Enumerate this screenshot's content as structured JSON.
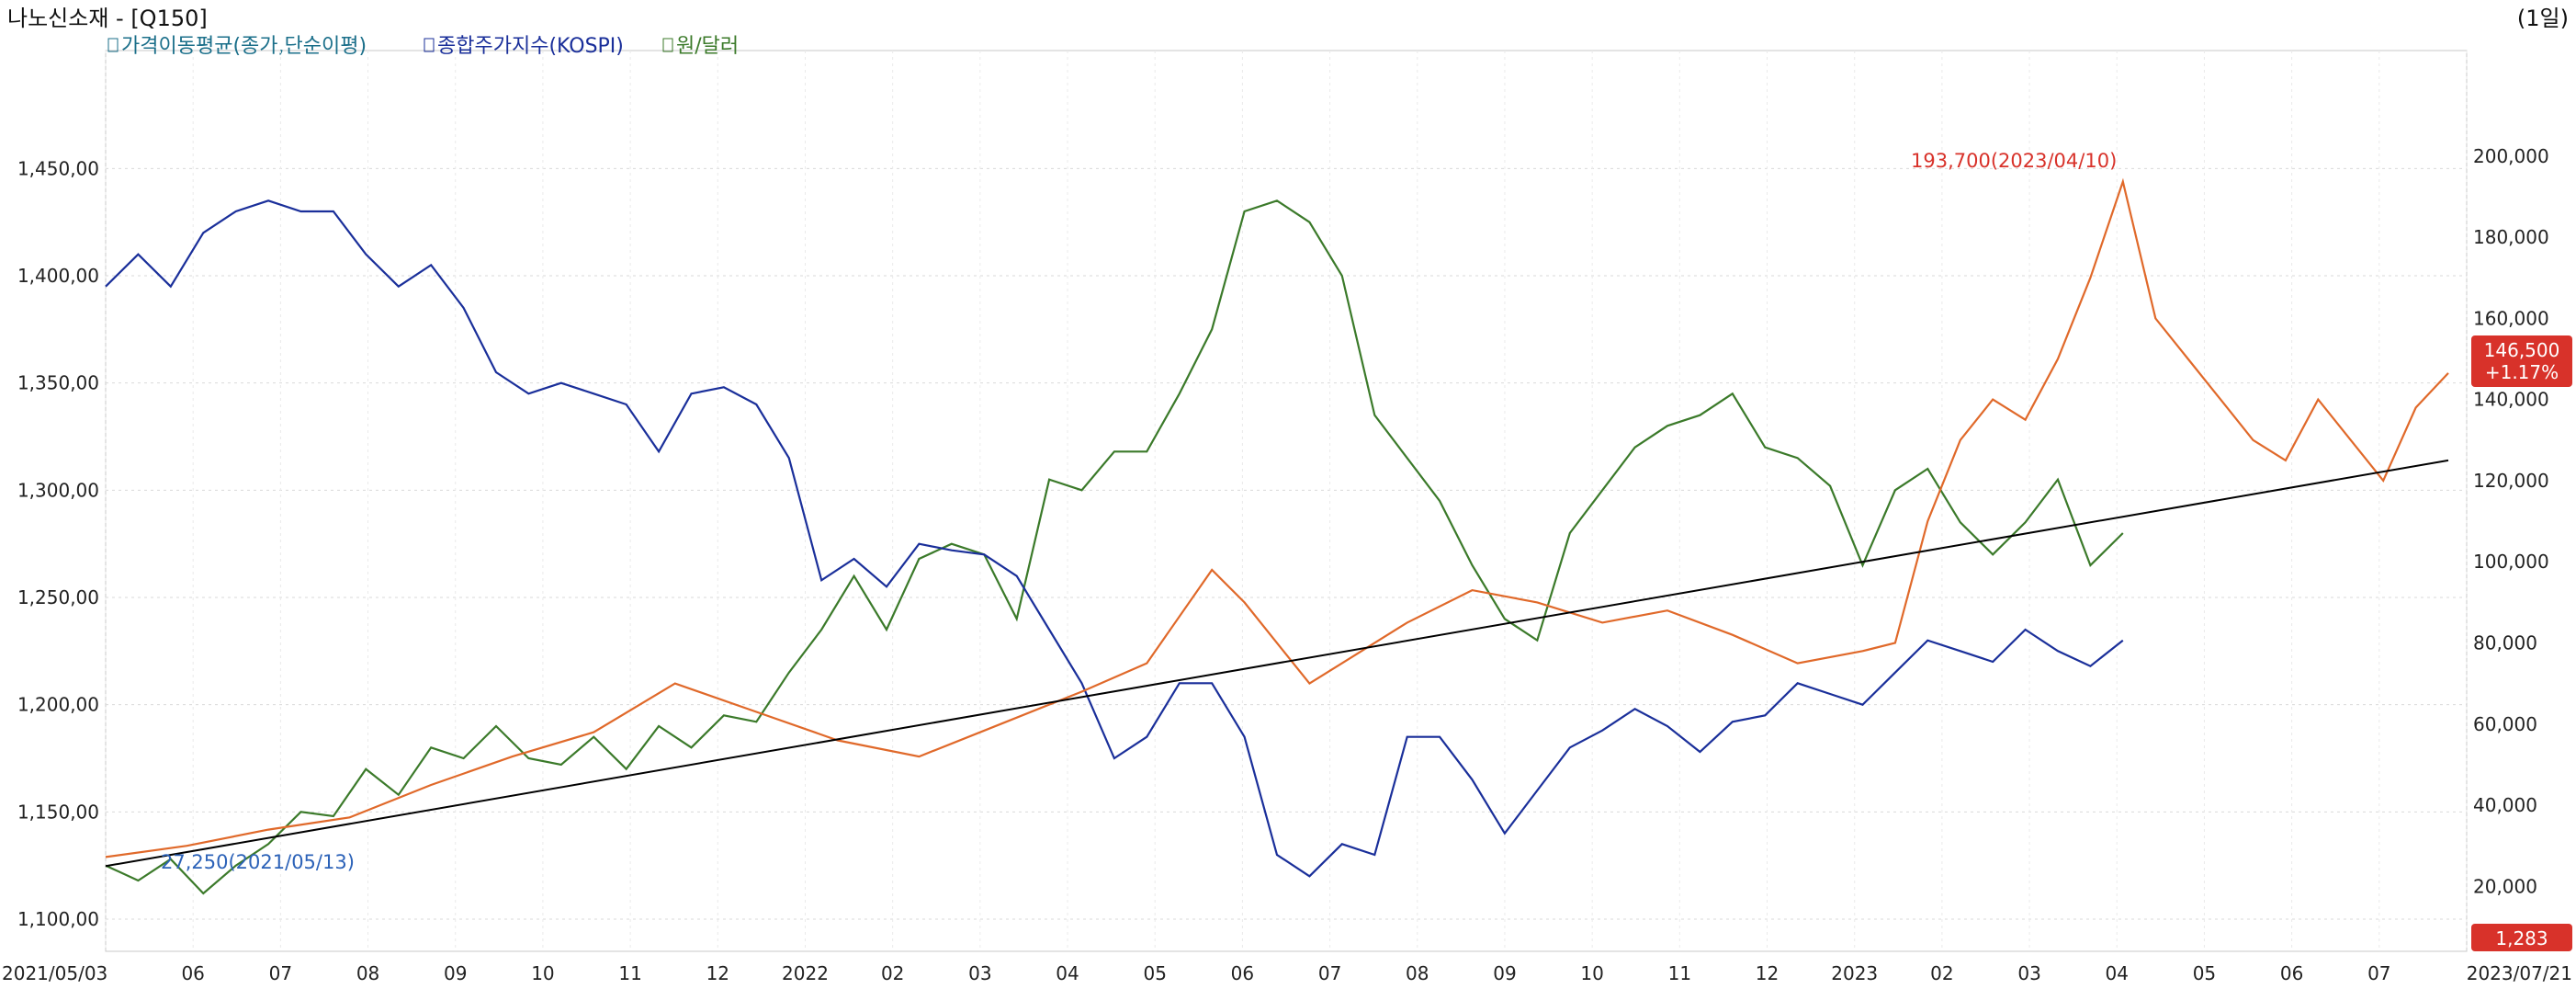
{
  "header": {
    "title": "나노신소재 - [Q150]",
    "period": "(1일)"
  },
  "legend": [
    {
      "label": "가격이동평균(종가,단순이평)",
      "color": "#1b6f8a"
    },
    {
      "label": "종합주가지수(KOSPI)",
      "color": "#1a2f9a"
    },
    {
      "label": "원/달러",
      "color": "#3b7a2a"
    }
  ],
  "annotations": {
    "high": "193,700(2023/04/10)",
    "low": "27,250(2021/05/13)"
  },
  "right_badges": {
    "price": "146,500",
    "change": "+1.17%",
    "fx": "1,283"
  },
  "chart_data": {
    "type": "line",
    "x_dates": [
      "2021/05/03",
      "2023/07/21"
    ],
    "x_ticks": [
      "2021/05/03",
      "06",
      "07",
      "08",
      "09",
      "10",
      "11",
      "12",
      "2022",
      "02",
      "03",
      "04",
      "05",
      "06",
      "07",
      "08",
      "09",
      "10",
      "11",
      "12",
      "2023",
      "02",
      "03",
      "04",
      "05",
      "06",
      "07",
      "2023/07/21"
    ],
    "left_axis": {
      "ticks": [
        "1,450,00",
        "1,400,00",
        "1,350,00",
        "1,300,00",
        "1,250,00",
        "1,200,00",
        "1,150,00",
        "1,100,00"
      ],
      "range": [
        1085,
        1505
      ]
    },
    "right_axis": {
      "ticks": [
        "200,000",
        "180,000",
        "160,000",
        "140,000",
        "120,000",
        "100,000",
        "80,000",
        "60,000",
        "40,000",
        "20,000"
      ],
      "range": [
        4000,
        226000
      ]
    },
    "series": [
      {
        "name": "원/달러",
        "axis": "left",
        "color": "#3b7a2a",
        "points": [
          [
            0,
            1125
          ],
          [
            0.02,
            1118
          ],
          [
            0.04,
            1128
          ],
          [
            0.06,
            1112
          ],
          [
            0.08,
            1125
          ],
          [
            0.1,
            1135
          ],
          [
            0.12,
            1150
          ],
          [
            0.14,
            1148
          ],
          [
            0.16,
            1170
          ],
          [
            0.18,
            1158
          ],
          [
            0.2,
            1180
          ],
          [
            0.22,
            1175
          ],
          [
            0.24,
            1190
          ],
          [
            0.26,
            1175
          ],
          [
            0.28,
            1172
          ],
          [
            0.3,
            1185
          ],
          [
            0.32,
            1170
          ],
          [
            0.34,
            1190
          ],
          [
            0.36,
            1180
          ],
          [
            0.38,
            1195
          ],
          [
            0.4,
            1192
          ],
          [
            0.42,
            1215
          ],
          [
            0.44,
            1235
          ],
          [
            0.46,
            1260
          ],
          [
            0.48,
            1235
          ],
          [
            0.5,
            1268
          ],
          [
            0.52,
            1275
          ],
          [
            0.54,
            1270
          ],
          [
            0.56,
            1240
          ],
          [
            0.58,
            1305
          ],
          [
            0.6,
            1300
          ],
          [
            0.62,
            1318
          ],
          [
            0.64,
            1318
          ],
          [
            0.66,
            1345
          ],
          [
            0.68,
            1375
          ],
          [
            0.7,
            1430
          ],
          [
            0.72,
            1435
          ],
          [
            0.74,
            1425
          ],
          [
            0.76,
            1400
          ],
          [
            0.78,
            1335
          ],
          [
            0.8,
            1315
          ],
          [
            0.82,
            1295
          ],
          [
            0.84,
            1265
          ],
          [
            0.86,
            1240
          ],
          [
            0.88,
            1230
          ],
          [
            0.9,
            1280
          ],
          [
            0.92,
            1300
          ],
          [
            0.94,
            1320
          ],
          [
            0.96,
            1330
          ],
          [
            0.98,
            1335
          ],
          [
            1.0,
            1345
          ],
          [
            1.02,
            1320
          ],
          [
            1.04,
            1315
          ],
          [
            1.06,
            1302
          ],
          [
            1.08,
            1265
          ],
          [
            1.1,
            1300
          ],
          [
            1.12,
            1310
          ],
          [
            1.14,
            1285
          ],
          [
            1.16,
            1270
          ],
          [
            1.18,
            1285
          ],
          [
            1.2,
            1305
          ],
          [
            1.22,
            1265
          ],
          [
            1.24,
            1280
          ]
        ]
      },
      {
        "name": "종합주가지수(KOSPI)",
        "axis": "left",
        "color": "#1a2f9a",
        "points": [
          [
            0,
            1395
          ],
          [
            0.02,
            1410
          ],
          [
            0.04,
            1395
          ],
          [
            0.06,
            1420
          ],
          [
            0.08,
            1430
          ],
          [
            0.1,
            1435
          ],
          [
            0.12,
            1430
          ],
          [
            0.14,
            1430
          ],
          [
            0.16,
            1410
          ],
          [
            0.18,
            1395
          ],
          [
            0.2,
            1405
          ],
          [
            0.22,
            1385
          ],
          [
            0.24,
            1355
          ],
          [
            0.26,
            1345
          ],
          [
            0.28,
            1350
          ],
          [
            0.3,
            1345
          ],
          [
            0.32,
            1340
          ],
          [
            0.34,
            1318
          ],
          [
            0.36,
            1345
          ],
          [
            0.38,
            1348
          ],
          [
            0.4,
            1340
          ],
          [
            0.42,
            1315
          ],
          [
            0.44,
            1258
          ],
          [
            0.46,
            1268
          ],
          [
            0.48,
            1255
          ],
          [
            0.5,
            1275
          ],
          [
            0.52,
            1272
          ],
          [
            0.54,
            1270
          ],
          [
            0.56,
            1260
          ],
          [
            0.58,
            1235
          ],
          [
            0.6,
            1210
          ],
          [
            0.62,
            1175
          ],
          [
            0.64,
            1185
          ],
          [
            0.66,
            1210
          ],
          [
            0.68,
            1210
          ],
          [
            0.7,
            1185
          ],
          [
            0.72,
            1130
          ],
          [
            0.74,
            1120
          ],
          [
            0.76,
            1135
          ],
          [
            0.78,
            1130
          ],
          [
            0.8,
            1185
          ],
          [
            0.82,
            1185
          ],
          [
            0.84,
            1165
          ],
          [
            0.86,
            1140
          ],
          [
            0.88,
            1160
          ],
          [
            0.9,
            1180
          ],
          [
            0.92,
            1188
          ],
          [
            0.94,
            1198
          ],
          [
            0.96,
            1190
          ],
          [
            0.98,
            1178
          ],
          [
            1.0,
            1192
          ],
          [
            1.02,
            1195
          ],
          [
            1.04,
            1210
          ],
          [
            1.06,
            1205
          ],
          [
            1.08,
            1200
          ],
          [
            1.1,
            1215
          ],
          [
            1.12,
            1230
          ],
          [
            1.14,
            1225
          ],
          [
            1.16,
            1220
          ],
          [
            1.18,
            1235
          ],
          [
            1.2,
            1225
          ],
          [
            1.22,
            1218
          ],
          [
            1.24,
            1230
          ]
        ]
      },
      {
        "name": "나노신소재",
        "axis": "right",
        "color": "#e0692a",
        "points": [
          [
            0,
            27250
          ],
          [
            0.05,
            30000
          ],
          [
            0.1,
            34000
          ],
          [
            0.15,
            37000
          ],
          [
            0.2,
            45000
          ],
          [
            0.25,
            52000
          ],
          [
            0.3,
            58000
          ],
          [
            0.35,
            70000
          ],
          [
            0.4,
            63000
          ],
          [
            0.45,
            56000
          ],
          [
            0.5,
            52000
          ],
          [
            0.55,
            60000
          ],
          [
            0.6,
            68000
          ],
          [
            0.64,
            75000
          ],
          [
            0.68,
            98000
          ],
          [
            0.7,
            90000
          ],
          [
            0.74,
            70000
          ],
          [
            0.76,
            75000
          ],
          [
            0.8,
            85000
          ],
          [
            0.84,
            93000
          ],
          [
            0.88,
            90000
          ],
          [
            0.92,
            85000
          ],
          [
            0.96,
            88000
          ],
          [
            1.0,
            82000
          ],
          [
            1.04,
            75000
          ],
          [
            1.08,
            78000
          ],
          [
            1.1,
            80000
          ],
          [
            1.12,
            110000
          ],
          [
            1.14,
            130000
          ],
          [
            1.16,
            140000
          ],
          [
            1.18,
            135000
          ],
          [
            1.2,
            150000
          ],
          [
            1.22,
            170000
          ],
          [
            1.24,
            193700
          ],
          [
            1.26,
            160000
          ],
          [
            1.28,
            150000
          ],
          [
            1.3,
            140000
          ],
          [
            1.32,
            130000
          ],
          [
            1.34,
            125000
          ],
          [
            1.36,
            140000
          ],
          [
            1.38,
            130000
          ],
          [
            1.4,
            120000
          ],
          [
            1.42,
            138000
          ],
          [
            1.44,
            146500
          ]
        ]
      }
    ],
    "trendline": {
      "from": [
        0,
        25000
      ],
      "to": [
        1.44,
        125000
      ],
      "color": "#000000"
    }
  }
}
